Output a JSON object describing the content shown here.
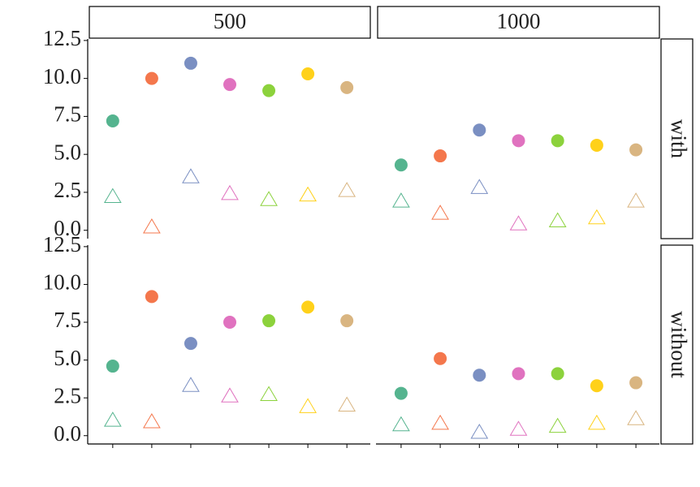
{
  "chart_data": {
    "type": "facet-point",
    "col_labels": [
      "500",
      "1000"
    ],
    "row_labels": [
      "with",
      "without"
    ],
    "categories": [
      null,
      null,
      null,
      null,
      null,
      null,
      null
    ],
    "colors": [
      "#55b48f",
      "#f4774c",
      "#7a8fc2",
      "#e072bf",
      "#8cd23c",
      "#ffd11a",
      "#d9b581"
    ],
    "ylim": [
      -0.55,
      12.6
    ],
    "yticks": [
      {
        "value": 0,
        "label": "0.0"
      },
      2.5,
      {
        "value": 5,
        "label": "5.0"
      },
      7.5,
      {
        "value": 10,
        "label": "10.0"
      },
      12.5
    ],
    "panels": [
      {
        "series": [
          {
            "marker": "circle",
            "values": [
              7.2,
              10.0,
              11.0,
              9.6,
              9.2,
              10.3,
              9.4
            ]
          },
          {
            "marker": "triangle",
            "values": [
              2.2,
              0.2,
              3.5,
              2.4,
              2.0,
              2.3,
              2.6
            ]
          }
        ]
      },
      {
        "series": [
          {
            "marker": "circle",
            "values": [
              4.3,
              4.9,
              6.6,
              5.9,
              5.9,
              5.6,
              5.3
            ]
          },
          {
            "marker": "triangle",
            "values": [
              1.9,
              1.1,
              2.8,
              0.4,
              0.6,
              0.8,
              1.9
            ]
          }
        ]
      },
      {
        "series": [
          {
            "marker": "circle",
            "values": [
              4.6,
              9.2,
              6.1,
              7.5,
              7.6,
              8.5,
              7.6
            ]
          },
          {
            "marker": "triangle",
            "values": [
              1.0,
              0.9,
              3.3,
              2.6,
              2.7,
              1.9,
              2.0
            ]
          }
        ]
      },
      {
        "series": [
          {
            "marker": "circle",
            "values": [
              2.8,
              5.1,
              4.0,
              4.1,
              4.1,
              3.3,
              3.5
            ]
          },
          {
            "marker": "triangle",
            "values": [
              0.7,
              0.8,
              0.2,
              0.4,
              0.6,
              0.8,
              1.1
            ]
          }
        ]
      }
    ]
  }
}
